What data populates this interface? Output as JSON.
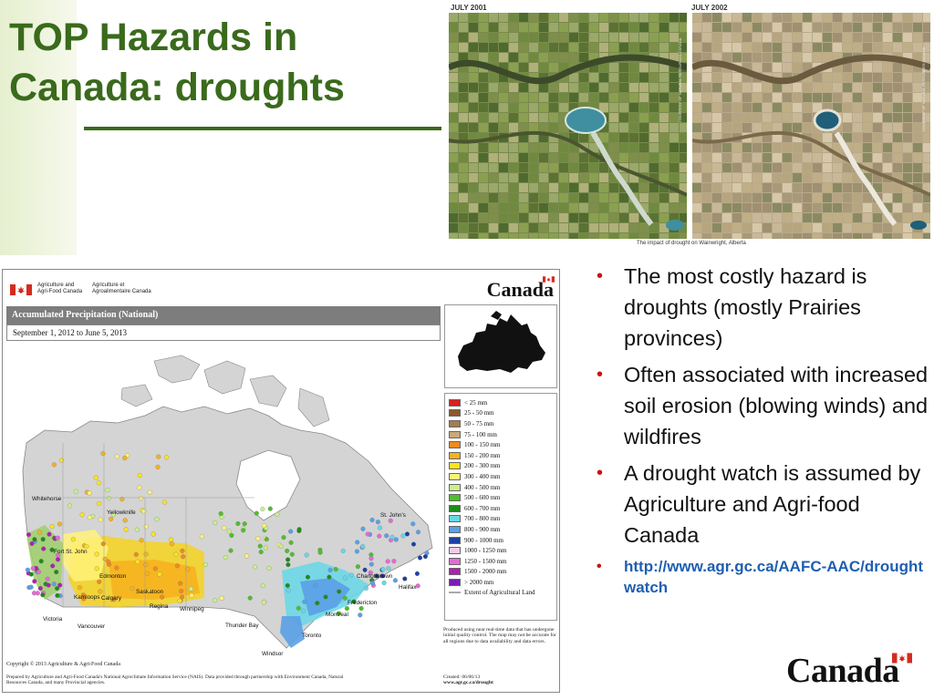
{
  "slide": {
    "title_line1": "TOP Hazards in",
    "title_line2": "Canada: droughts"
  },
  "satellite": {
    "left_date": "JULY 2001",
    "right_date": "JULY 2002",
    "caption": "The impact of drought on Wainwright, Alberta",
    "vertical_credit": "COURTESY OF NATURAL RESOURCES CANADA"
  },
  "map": {
    "org_en_line1": "Agriculture and",
    "org_en_line2": "Agri-Food Canada",
    "org_fr_line1": "Agriculture et",
    "org_fr_line2": "Agroalimentaire Canada",
    "wordmark": "Canada",
    "title": "Accumulated Precipitation (National)",
    "date_range": "September 1, 2012 to June 5, 2013",
    "legend": [
      {
        "label": "< 25 mm",
        "color": "#d62020"
      },
      {
        "label": "25 - 50 mm",
        "color": "#8a5a2b"
      },
      {
        "label": "50 - 75 mm",
        "color": "#a67c4e"
      },
      {
        "label": "75 - 100 mm",
        "color": "#c9a97a"
      },
      {
        "label": "100 - 150 mm",
        "color": "#f08a1e"
      },
      {
        "label": "150 - 200 mm",
        "color": "#f6b21f"
      },
      {
        "label": "200 - 300 mm",
        "color": "#ffe41a"
      },
      {
        "label": "300 - 400 mm",
        "color": "#fff27a"
      },
      {
        "label": "400 - 500 mm",
        "color": "#c9f08a"
      },
      {
        "label": "500 - 600 mm",
        "color": "#4fbf2a"
      },
      {
        "label": "600 - 700 mm",
        "color": "#1f8a1f"
      },
      {
        "label": "700 - 800 mm",
        "color": "#67d7e6"
      },
      {
        "label": "800 - 900 mm",
        "color": "#5aa0e6"
      },
      {
        "label": "900 - 1000 mm",
        "color": "#1f3fa0"
      },
      {
        "label": "1000 - 1250 mm",
        "color": "#f6c9e6"
      },
      {
        "label": "1250 - 1500 mm",
        "color": "#e66ad2"
      },
      {
        "label": "1500 - 2000 mm",
        "color": "#b01fb0"
      },
      {
        "label": "> 2000 mm",
        "color": "#7a1fb0"
      }
    ],
    "legend_line_label": "Extent of Agricultural Land",
    "produced_note": "Produced using near real-time data that has undergone initial quality control. The map may not be accurate for all regions due to data availability and data errors.",
    "copyright": "Copyright © 2013 Agriculture & Agri-Food Canada",
    "prepared": "Prepared by Agriculture and Agri-Food Canada's National Agroclimate Information Service (NAIS). Data provided through partnership with Environment Canada, Natural Resources Canada, and many Provincial agencies.",
    "created_line1": "Created: 06/06/13",
    "created_line2": "www.agr.gc.ca/drought",
    "cities": {
      "whitehorse": "Whitehorse",
      "yellowknife": "Yellowknife",
      "fort_st_john": "Fort St. John",
      "edmonton": "Edmonton",
      "calgary": "Calgary",
      "saskatoon": "Saskatoon",
      "regina": "Regina",
      "winnipeg": "Winnipeg",
      "kamloops": "Kamloops",
      "victoria": "Victoria",
      "vancouver": "Vancouver",
      "thunder_bay": "Thunder Bay",
      "toronto": "Toronto",
      "windsor": "Windsor",
      "montreal": "Montreal",
      "fredericton": "Fredericton",
      "charlottetown": "Charlottetown",
      "halifax": "Halifax",
      "st_johns": "St. John's"
    }
  },
  "bullets": [
    "The most costly hazard is droughts (mostly Prairies provinces)",
    "Often associated with increased soil erosion (blowing winds) and wildfires",
    "A drought watch is assumed by Agriculture and Agri-food Canada"
  ],
  "link": "http://www.agr.gc.ca/AAFC-AAC/drought watch",
  "footer_wordmark": "Canada",
  "colors": {
    "title_green": "#3a6a1c",
    "bullet_red": "#cc1111",
    "link_blue": "#1f5fb0"
  }
}
